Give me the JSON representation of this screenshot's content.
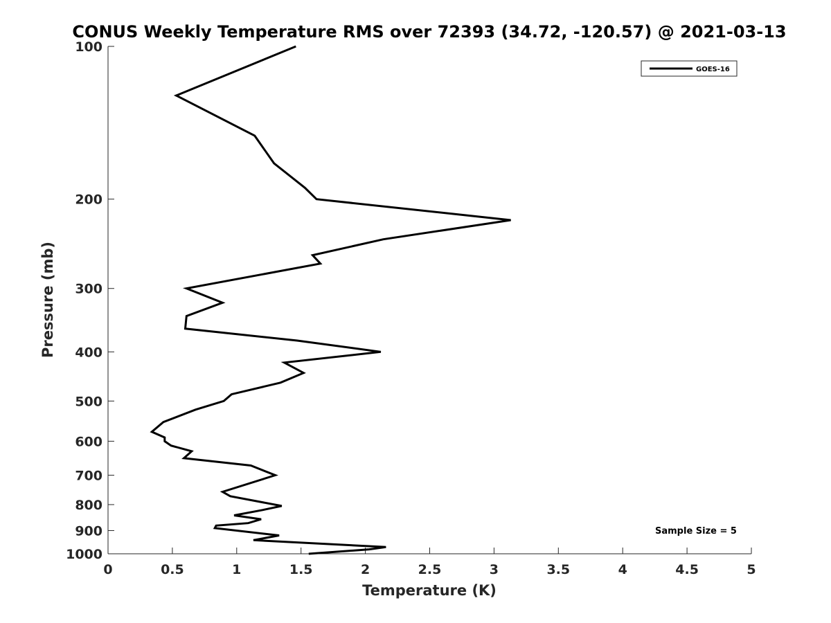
{
  "chart_data": {
    "type": "line",
    "title": "CONUS Weekly Temperature RMS over 72393 (34.72, -120.57) @ 2021-03-13",
    "xlabel": "Temperature (K)",
    "ylabel": "Pressure (mb)",
    "xlim": [
      0,
      5
    ],
    "ylim": [
      100,
      1000
    ],
    "yscale": "log",
    "y_reversed": true,
    "x_ticks": [
      0,
      0.5,
      1,
      1.5,
      2,
      2.5,
      3,
      3.5,
      4,
      4.5,
      5
    ],
    "x_tick_labels": [
      "0",
      "0.5",
      "1",
      "1.5",
      "2",
      "2.5",
      "3",
      "3.5",
      "4",
      "4.5",
      "5"
    ],
    "y_ticks": [
      100,
      200,
      300,
      400,
      500,
      600,
      700,
      800,
      900,
      1000
    ],
    "y_tick_labels": [
      "100",
      "200",
      "300",
      "400",
      "500",
      "600",
      "700",
      "800",
      "900",
      "1000"
    ],
    "grid": false,
    "legend": {
      "location": "top-right",
      "entries": [
        "GOES-16"
      ]
    },
    "annotation": "Sample Size = 5",
    "series": [
      {
        "name": "GOES-16",
        "color": "#000000",
        "x": [
          1.46,
          0.53,
          1.14,
          1.29,
          1.53,
          1.62,
          3.13,
          2.14,
          1.59,
          1.65,
          0.61,
          0.89,
          0.61,
          0.6,
          1.47,
          2.12,
          1.37,
          1.52,
          1.34,
          0.96,
          0.9,
          0.68,
          0.43,
          0.34,
          0.44,
          0.44,
          0.49,
          0.65,
          0.59,
          1.11,
          1.3,
          0.89,
          0.95,
          1.35,
          1.2,
          0.98,
          1.19,
          1.09,
          0.84,
          0.83,
          1.33,
          1.13,
          2.16,
          2.03,
          1.56
        ],
        "y": [
          100,
          125,
          150,
          170,
          190,
          200,
          220,
          240,
          258,
          268,
          300,
          320,
          340,
          360,
          380,
          400,
          420,
          440,
          460,
          485,
          500,
          520,
          550,
          575,
          590,
          600,
          612,
          628,
          648,
          670,
          700,
          755,
          770,
          805,
          820,
          840,
          855,
          870,
          880,
          890,
          920,
          940,
          970,
          980,
          1000
        ]
      }
    ]
  }
}
